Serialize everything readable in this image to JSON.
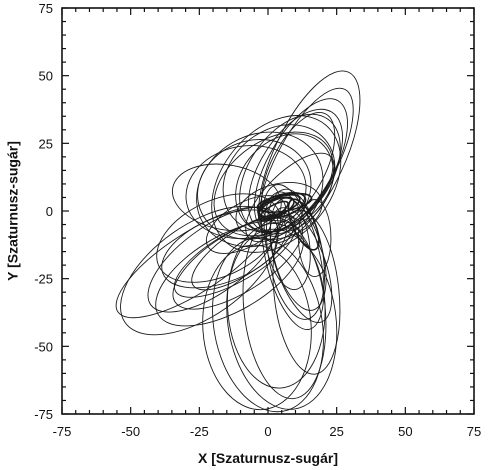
{
  "chart_data": {
    "type": "line",
    "title": "",
    "xlabel": "X [Szaturnusz-sugár]",
    "ylabel": "Y [Szaturnusz-sugár]",
    "xlim": [
      -75,
      75
    ],
    "ylim": [
      -75,
      75
    ],
    "xticks": [
      -75,
      -50,
      -25,
      0,
      25,
      50,
      75
    ],
    "yticks": [
      75,
      50,
      25,
      0,
      -25,
      -50,
      -75
    ],
    "xtick_labels": [
      "-75",
      "-50",
      "-25",
      "0",
      "25",
      "50",
      "75"
    ],
    "ytick_labels": [
      "75",
      "50",
      "25",
      "0",
      "-25",
      "-50",
      "-75"
    ],
    "minor_ticks_per_major": 4,
    "grid": false,
    "line_color": "#1a1a1a",
    "orbits": [
      {
        "cx": 15,
        "cy": 20,
        "a": 34,
        "b": 13,
        "angle": 65
      },
      {
        "cx": 14,
        "cy": 18,
        "a": 30,
        "b": 11,
        "angle": 62
      },
      {
        "cx": 12,
        "cy": 17,
        "a": 27,
        "b": 12,
        "angle": 60
      },
      {
        "cx": 10,
        "cy": 15,
        "a": 25,
        "b": 13,
        "angle": 58
      },
      {
        "cx": 11,
        "cy": 16,
        "a": 22,
        "b": 10,
        "angle": 63
      },
      {
        "cx": 8,
        "cy": 14,
        "a": 24,
        "b": 15,
        "angle": 55
      },
      {
        "cx": 6,
        "cy": 10,
        "a": 20,
        "b": 16,
        "angle": 48
      },
      {
        "cx": 4,
        "cy": 12,
        "a": 22,
        "b": 18,
        "angle": 40
      },
      {
        "cx": 2,
        "cy": 10,
        "a": 24,
        "b": 16,
        "angle": 35
      },
      {
        "cx": -3,
        "cy": 8,
        "a": 24,
        "b": 20,
        "angle": 30
      },
      {
        "cx": -5,
        "cy": 8,
        "a": 21,
        "b": 18,
        "angle": 20
      },
      {
        "cx": -8,
        "cy": 7,
        "a": 22,
        "b": 17,
        "angle": 10
      },
      {
        "cx": 3,
        "cy": 10,
        "a": 28,
        "b": 20,
        "angle": 50
      },
      {
        "cx": 8,
        "cy": 5,
        "a": 21,
        "b": 9,
        "angle": 45
      },
      {
        "cx": 4,
        "cy": 0,
        "a": 16,
        "b": 10,
        "angle": 15
      },
      {
        "cx": -14,
        "cy": -23,
        "a": 30,
        "b": 14,
        "angle": 30
      },
      {
        "cx": -11,
        "cy": -19,
        "a": 27,
        "b": 11,
        "angle": 32
      },
      {
        "cx": -12,
        "cy": -17,
        "a": 25,
        "b": 9,
        "angle": 30
      },
      {
        "cx": -9,
        "cy": -15,
        "a": 22,
        "b": 8,
        "angle": 34
      },
      {
        "cx": -16,
        "cy": -14,
        "a": 24,
        "b": 12,
        "angle": 22
      },
      {
        "cx": -25,
        "cy": -22,
        "a": 33,
        "b": 17,
        "angle": 35
      },
      {
        "cx": -27,
        "cy": -19,
        "a": 33,
        "b": 11,
        "angle": 33
      },
      {
        "cx": -20,
        "cy": -18,
        "a": 28,
        "b": 12,
        "angle": 36
      },
      {
        "cx": -18,
        "cy": -10,
        "a": 24,
        "b": 14,
        "angle": 25
      },
      {
        "cx": -8,
        "cy": -5,
        "a": 16,
        "b": 8,
        "angle": 30
      },
      {
        "cx": -15,
        "cy": 5,
        "a": 20,
        "b": 12,
        "angle": -10
      },
      {
        "cx": 9,
        "cy": -17,
        "a": 27,
        "b": 10,
        "angle": 103
      },
      {
        "cx": 10,
        "cy": -16,
        "a": 24,
        "b": 10,
        "angle": 100
      },
      {
        "cx": 11,
        "cy": -16,
        "a": 21,
        "b": 9,
        "angle": 105
      },
      {
        "cx": 7,
        "cy": -11,
        "a": 18,
        "b": 8,
        "angle": 100
      },
      {
        "cx": 12,
        "cy": -20,
        "a": 22,
        "b": 9,
        "angle": 110
      },
      {
        "cx": 6,
        "cy": -36,
        "a": 33,
        "b": 15,
        "angle": 96
      },
      {
        "cx": 5,
        "cy": -40,
        "a": 33,
        "b": 20,
        "angle": 98
      },
      {
        "cx": 0,
        "cy": -42,
        "a": 32,
        "b": 20,
        "angle": 100
      },
      {
        "cx": -4,
        "cy": -43,
        "a": 30,
        "b": 20,
        "angle": 94
      },
      {
        "cx": 3,
        "cy": -35,
        "a": 30,
        "b": 18,
        "angle": 93
      },
      {
        "cx": 14,
        "cy": -30,
        "a": 30,
        "b": 12,
        "angle": 96
      },
      {
        "cx": 17,
        "cy": -10,
        "a": 14,
        "b": 6,
        "angle": 90
      },
      {
        "cx": 13,
        "cy": -5,
        "a": 10,
        "b": 4,
        "angle": 115
      },
      {
        "cx": 4,
        "cy": 2,
        "a": 8,
        "b": 3,
        "angle": 20
      },
      {
        "cx": 3,
        "cy": 1,
        "a": 7,
        "b": 3,
        "angle": 25
      },
      {
        "cx": 5,
        "cy": 2,
        "a": 9,
        "b": 4,
        "angle": 18
      },
      {
        "cx": 6,
        "cy": 3,
        "a": 10,
        "b": 3,
        "angle": 10
      },
      {
        "cx": 2,
        "cy": 0,
        "a": 6,
        "b": 2,
        "angle": 30
      }
    ]
  }
}
